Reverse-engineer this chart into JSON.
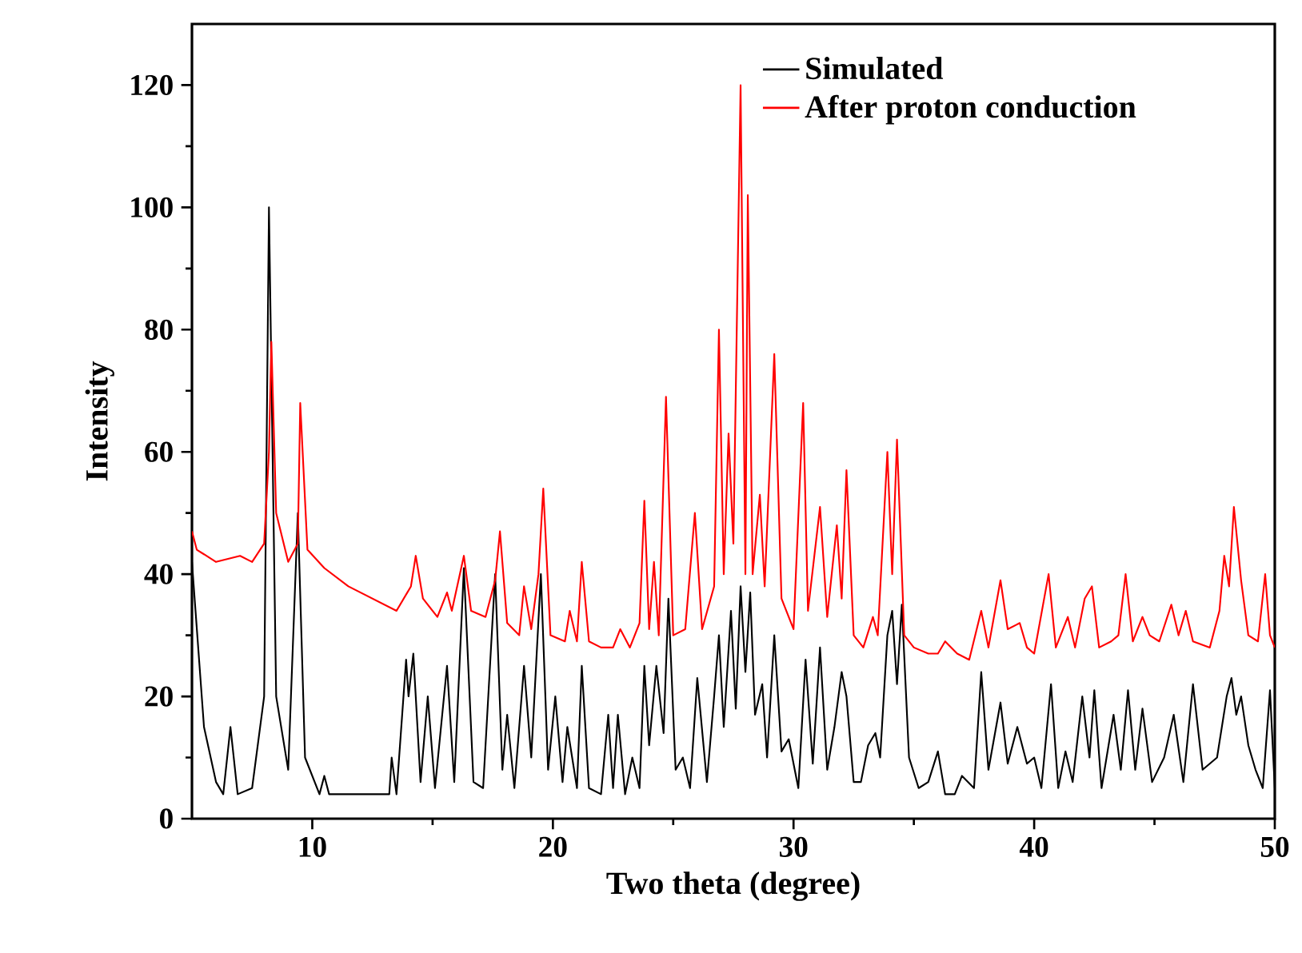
{
  "chart_data": {
    "type": "line",
    "xlabel": "Two theta (degree)",
    "ylabel": "Intensity",
    "xlim": [
      5,
      50
    ],
    "ylim": [
      0,
      130
    ],
    "xticks": [
      10,
      20,
      30,
      40,
      50
    ],
    "yticks": [
      0,
      20,
      40,
      60,
      80,
      100,
      120
    ],
    "legend": "top",
    "grid": false,
    "marker": "none",
    "line_style": "solid",
    "series": [
      {
        "name": "Simulated",
        "color": "#000000",
        "x": [
          5,
          5.5,
          6.0,
          6.3,
          6.6,
          6.9,
          7.5,
          8.0,
          8.2,
          8.5,
          9.0,
          9.4,
          9.7,
          10.3,
          10.5,
          10.7,
          13.2,
          13.3,
          13.5,
          13.9,
          14.0,
          14.2,
          14.5,
          14.8,
          15.1,
          15.6,
          15.9,
          16.3,
          16.7,
          17.1,
          17.6,
          17.9,
          18.1,
          18.4,
          18.8,
          19.1,
          19.5,
          19.8,
          20.1,
          20.4,
          20.6,
          21.0,
          21.2,
          21.5,
          22.0,
          22.3,
          22.5,
          22.7,
          23.0,
          23.3,
          23.6,
          23.8,
          24.0,
          24.3,
          24.6,
          24.8,
          25.1,
          25.4,
          25.7,
          26.0,
          26.4,
          26.7,
          26.9,
          27.1,
          27.4,
          27.6,
          27.8,
          28.0,
          28.2,
          28.4,
          28.7,
          28.9,
          29.2,
          29.5,
          29.8,
          30.2,
          30.5,
          30.8,
          31.1,
          31.4,
          31.7,
          32.0,
          32.2,
          32.5,
          32.8,
          33.1,
          33.4,
          33.6,
          33.9,
          34.1,
          34.3,
          34.5,
          34.8,
          35.2,
          35.6,
          36.0,
          36.3,
          36.7,
          37.0,
          37.5,
          37.8,
          38.1,
          38.6,
          38.9,
          39.3,
          39.7,
          40.0,
          40.3,
          40.7,
          41.0,
          41.3,
          41.6,
          42.0,
          42.3,
          42.5,
          42.8,
          43.3,
          43.6,
          43.9,
          44.2,
          44.5,
          44.9,
          45.4,
          45.8,
          46.2,
          46.6,
          47.0,
          47.6,
          48.0,
          48.2,
          48.4,
          48.6,
          48.9,
          49.2,
          49.5,
          49.8,
          50.0
        ],
        "values": [
          42,
          15,
          6,
          4,
          15,
          4,
          5,
          20,
          100,
          20,
          8,
          50,
          10,
          4,
          7,
          4,
          4,
          10,
          4,
          26,
          20,
          27,
          6,
          20,
          5,
          25,
          6,
          41,
          6,
          5,
          40,
          8,
          17,
          5,
          25,
          10,
          40,
          8,
          20,
          6,
          15,
          5,
          25,
          5,
          4,
          17,
          5,
          17,
          4,
          10,
          5,
          25,
          12,
          25,
          14,
          36,
          8,
          10,
          5,
          23,
          6,
          20,
          30,
          15,
          34,
          18,
          38,
          24,
          37,
          17,
          22,
          10,
          30,
          11,
          13,
          5,
          26,
          9,
          28,
          8,
          15,
          24,
          20,
          6,
          6,
          12,
          14,
          10,
          30,
          34,
          22,
          35,
          10,
          5,
          6,
          11,
          4,
          4,
          7,
          5,
          24,
          8,
          19,
          9,
          15,
          9,
          10,
          5,
          22,
          5,
          11,
          6,
          20,
          10,
          21,
          5,
          17,
          8,
          21,
          8,
          18,
          6,
          10,
          17,
          6,
          22,
          8,
          10,
          20,
          23,
          17,
          20,
          12,
          8,
          5,
          21,
          5
        ]
      },
      {
        "name": "After proton conduction",
        "color": "#ff0000",
        "x": [
          5,
          5.2,
          6,
          7,
          7.5,
          8.0,
          8.2,
          8.3,
          8.5,
          9.0,
          9.4,
          9.5,
          9.8,
          10.5,
          11.5,
          12.5,
          13.5,
          14.1,
          14.3,
          14.6,
          15.2,
          15.6,
          15.8,
          16.3,
          16.6,
          17.2,
          17.6,
          17.8,
          18.1,
          18.6,
          18.8,
          19.1,
          19.4,
          19.6,
          19.9,
          20.5,
          20.7,
          21.0,
          21.2,
          21.5,
          22.0,
          22.5,
          22.8,
          23.2,
          23.6,
          23.8,
          24.0,
          24.2,
          24.4,
          24.7,
          25.0,
          25.5,
          25.9,
          26.2,
          26.7,
          26.9,
          27.1,
          27.3,
          27.5,
          27.8,
          28.0,
          28.1,
          28.3,
          28.6,
          28.8,
          29.2,
          29.5,
          30.0,
          30.4,
          30.6,
          31.1,
          31.4,
          31.8,
          32.0,
          32.2,
          32.5,
          32.9,
          33.3,
          33.5,
          33.9,
          34.1,
          34.3,
          34.6,
          35.0,
          35.6,
          36.0,
          36.3,
          36.8,
          37.3,
          37.8,
          38.1,
          38.6,
          38.9,
          39.4,
          39.7,
          40.0,
          40.6,
          40.9,
          41.4,
          41.7,
          42.1,
          42.4,
          42.7,
          43.2,
          43.5,
          43.8,
          44.1,
          44.5,
          44.8,
          45.2,
          45.7,
          46.0,
          46.3,
          46.6,
          47.3,
          47.7,
          47.9,
          48.1,
          48.3,
          48.6,
          48.9,
          49.3,
          49.6,
          49.8,
          50.0
        ],
        "values": [
          47,
          44,
          42,
          43,
          42,
          45,
          60,
          78,
          50,
          42,
          45,
          68,
          44,
          41,
          38,
          36,
          34,
          38,
          43,
          36,
          33,
          37,
          34,
          43,
          34,
          33,
          39,
          47,
          32,
          30,
          38,
          31,
          40,
          54,
          30,
          29,
          34,
          29,
          42,
          29,
          28,
          28,
          31,
          28,
          32,
          52,
          31,
          42,
          30,
          69,
          30,
          31,
          50,
          31,
          38,
          80,
          40,
          63,
          45,
          120,
          40,
          102,
          40,
          53,
          38,
          76,
          36,
          31,
          68,
          34,
          51,
          33,
          48,
          36,
          57,
          30,
          28,
          33,
          30,
          60,
          40,
          62,
          30,
          28,
          27,
          27,
          29,
          27,
          26,
          34,
          28,
          39,
          31,
          32,
          28,
          27,
          40,
          28,
          33,
          28,
          36,
          38,
          28,
          29,
          30,
          40,
          29,
          33,
          30,
          29,
          35,
          30,
          34,
          29,
          28,
          34,
          43,
          38,
          51,
          39,
          30,
          29,
          40,
          30,
          28
        ]
      }
    ]
  }
}
